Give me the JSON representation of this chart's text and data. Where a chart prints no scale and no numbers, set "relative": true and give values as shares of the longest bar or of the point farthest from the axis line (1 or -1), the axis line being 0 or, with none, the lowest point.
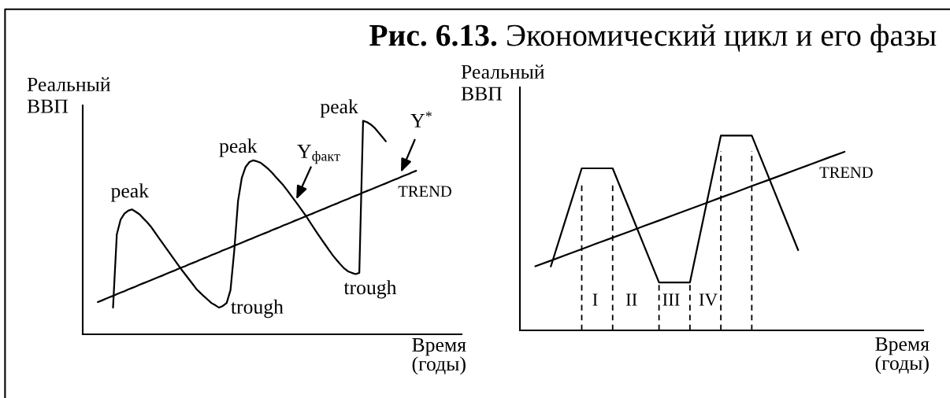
{
  "chart_data": [
    {
      "type": "line",
      "relative": true,
      "xlabel": "Время\n(годы)",
      "ylabel": "Реальный\nВВП",
      "categories": [
        null,
        null,
        null,
        null,
        null,
        null,
        null,
        null,
        null,
        null,
        null,
        null,
        null,
        null,
        null,
        null,
        null,
        null,
        null,
        null,
        null,
        null,
        null,
        null,
        null,
        null,
        null,
        null,
        null,
        null,
        null,
        null,
        null,
        null,
        null,
        null,
        null,
        null,
        null,
        null,
        null,
        null,
        null,
        null,
        null,
        null,
        null,
        null,
        null,
        null,
        null,
        null,
        null,
        null,
        null,
        null,
        null,
        null,
        null,
        null,
        null,
        null,
        null,
        null,
        null,
        null,
        null,
        null,
        null,
        null,
        null,
        null,
        null,
        null,
        null,
        null,
        null,
        null,
        null,
        null,
        null,
        null,
        null,
        null,
        null
      ],
      "series": [
        {
          "color": "#000000",
          "values": [
            null,
            null,
            null,
            null,
            0.125,
            0.468,
            0.537,
            0.565,
            0.579,
            0.585,
            0.574,
            0.562,
            0.543,
            0.525,
            0.504,
            0.479,
            0.454,
            0.429,
            0.404,
            0.379,
            0.354,
            0.329,
            0.305,
            0.282,
            0.259,
            0.236,
            0.212,
            0.195,
            0.178,
            0.162,
            0.146,
            0.136,
            0.125,
            0.133,
            0.147,
            0.207,
            0.393,
            0.625,
            0.734,
            0.784,
            0.807,
            0.815,
            0.81,
            0.803,
            0.789,
            0.774,
            0.756,
            0.736,
            0.717,
            0.697,
            0.674,
            0.65,
            0.626,
            0.602,
            0.577,
            0.552,
            0.525,
            0.498,
            0.471,
            0.445,
            0.42,
            0.395,
            0.37,
            0.348,
            0.328,
            0.309,
            0.295,
            0.288,
            0.282,
            0.288,
            1.0,
            0.994,
            0.983,
            0.968,
            0.947,
            0.926,
            0.904,
            null,
            null,
            null,
            null,
            null,
            null,
            null,
            null
          ]
        },
        {
          "name": "TREND",
          "color": "#000000",
          "values": [
            0.151,
            0.158,
            0.166,
            0.173,
            0.18,
            0.188,
            0.195,
            0.202,
            0.21,
            0.217,
            0.224,
            0.232,
            0.239,
            0.246,
            0.253,
            0.261,
            0.268,
            0.275,
            0.283,
            0.29,
            0.297,
            0.305,
            0.312,
            0.319,
            0.327,
            0.334,
            0.341,
            0.349,
            0.356,
            0.363,
            0.371,
            0.378,
            0.385,
            0.393,
            0.4,
            0.407,
            0.415,
            0.422,
            0.429,
            0.437,
            0.444,
            0.451,
            0.459,
            0.466,
            0.473,
            0.48,
            0.488,
            0.495,
            0.502,
            0.51,
            0.517,
            0.524,
            0.532,
            0.539,
            0.546,
            0.554,
            0.561,
            0.568,
            0.576,
            0.583,
            0.59,
            0.598,
            0.605,
            0.612,
            0.62,
            0.627,
            0.634,
            0.642,
            0.649,
            0.656,
            0.664,
            0.671,
            0.678,
            0.685,
            0.693,
            0.7,
            0.707,
            0.715,
            0.722,
            0.729,
            0.737,
            0.744,
            0.751,
            0.759,
            0.766
          ]
        }
      ],
      "annotations": [
        "peak",
        "peak",
        "peak",
        "trough",
        "trough",
        "Y$_{факт}$",
        "Y$^{*}$"
      ]
    },
    {
      "type": "line",
      "relative": true,
      "grid": "x",
      "title": "Рис. 6.13. Экономический цикл и его фазы",
      "xlabel": "Время\n(годы)",
      "ylabel": "Реальный\nВВП",
      "categories": [
        null,
        null,
        null,
        null,
        null,
        null,
        null,
        null,
        null,
        null,
        null,
        null,
        null,
        null,
        null,
        null,
        null,
        null,
        null,
        null,
        null
      ],
      "series": [
        {
          "color": "#000000",
          "values": [
            null,
            0.328,
            0.58,
            0.832,
            0.832,
            0.832,
            0.637,
            0.441,
            0.246,
            0.246,
            0.246,
            0.623,
            1.0,
            1.0,
            1.0,
            0.804,
            0.608,
            0.412,
            null,
            null,
            null
          ]
        },
        {
          "name": "TREND",
          "color": "#000000",
          "values": [
            0.329,
            0.358,
            0.388,
            0.417,
            0.447,
            0.476,
            0.505,
            0.535,
            0.564,
            0.594,
            0.623,
            0.652,
            0.682,
            0.711,
            0.741,
            0.77,
            0.799,
            0.829,
            0.858,
            0.888,
            0.917
          ]
        }
      ],
      "annotations": [
        "I",
        "II",
        "III",
        "IV"
      ]
    }
  ]
}
